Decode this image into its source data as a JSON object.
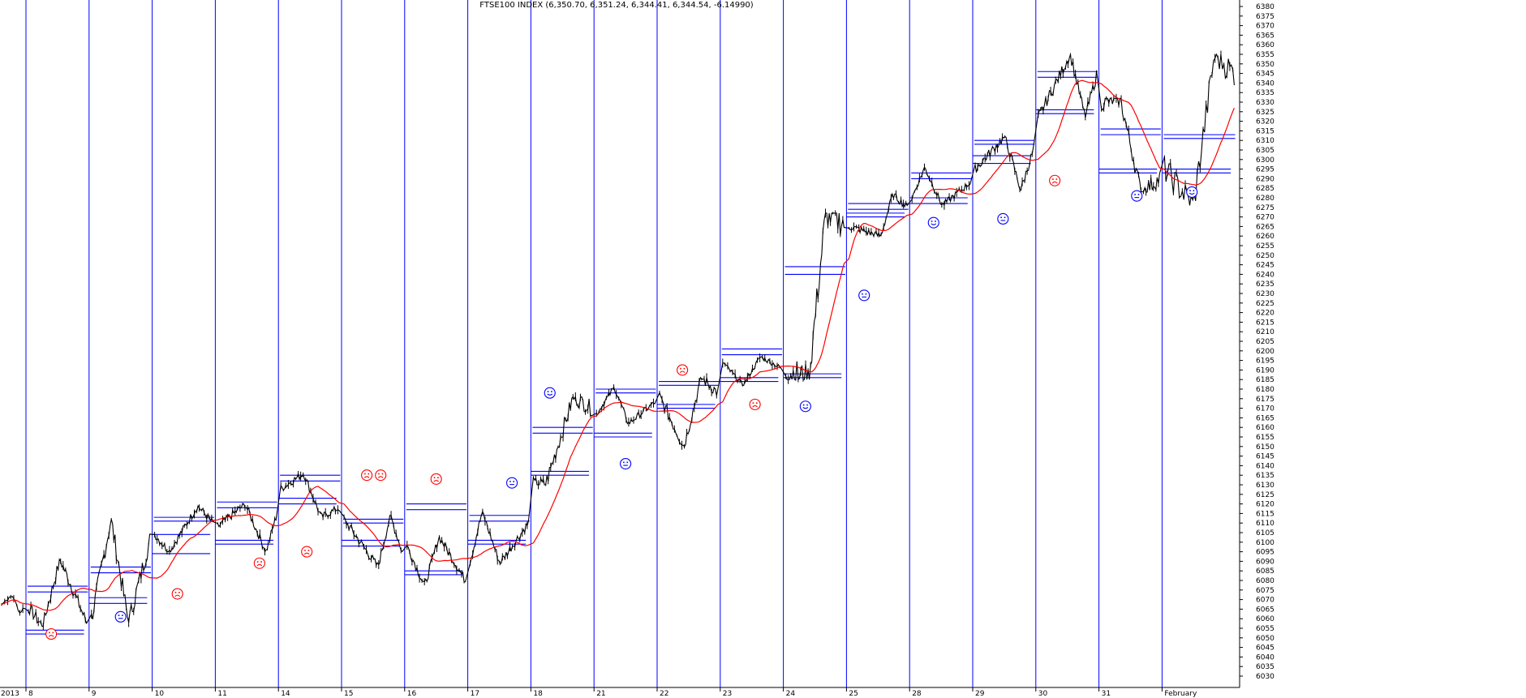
{
  "chart_data": {
    "type": "line",
    "title": "FTSE100 INDEX (6,350.70, 6,351.24, 6,344.41, 6,344.54, -6.14990)",
    "ylim": [
      6030,
      6380
    ],
    "ytick_step": 5,
    "grid": false,
    "x_labels": [
      "2013",
      "8",
      "9",
      "10",
      "11",
      "14",
      "15",
      "16",
      "17",
      "18",
      "21",
      "22",
      "23",
      "24",
      "25",
      "28",
      "29",
      "30",
      "31",
      "February"
    ],
    "sessions": [
      {
        "label": "8",
        "open": 6066,
        "close": 6058,
        "high": 6091,
        "low": 6056,
        "pivots": [
          6077,
          6074,
          6054,
          6052
        ]
      },
      {
        "label": "9",
        "open": 6060,
        "close": 6101,
        "high": 6112,
        "low": 6058,
        "pivots": [
          6087,
          6084,
          6071,
          6068
        ]
      },
      {
        "label": "10",
        "open": 6104,
        "close": 6110,
        "high": 6119,
        "low": 6095,
        "pivots": [
          6113,
          6111,
          6104,
          6094
        ]
      },
      {
        "label": "11",
        "open": 6108,
        "close": 6113,
        "high": 6120,
        "low": 6095,
        "pivots": [
          6121,
          6118,
          6101,
          6099
        ]
      },
      {
        "label": "14",
        "open": 6128,
        "close": 6118,
        "high": 6136,
        "low": 6113,
        "pivots": [
          6135,
          6132,
          6123,
          6120
        ]
      },
      {
        "label": "15",
        "open": 6112,
        "close": 6095,
        "high": 6114,
        "low": 6087,
        "pivots": [
          6112,
          6110,
          6101,
          6098
        ]
      },
      {
        "label": "16",
        "open": 6098,
        "close": 6080,
        "high": 6103,
        "low": 6077,
        "pivots": [
          6120,
          6117,
          6085,
          6083
        ]
      },
      {
        "label": "17",
        "open": 6090,
        "close": 6110,
        "high": 6116,
        "low": 6089,
        "pivots": [
          6114,
          6111,
          6101,
          6099
        ]
      },
      {
        "label": "18",
        "open": 6130,
        "close": 6170,
        "high": 6176,
        "low": 6130,
        "pivots": [
          6160,
          6157,
          6137,
          6135
        ]
      },
      {
        "label": "21",
        "open": 6167,
        "close": 6173,
        "high": 6181,
        "low": 6162,
        "pivots": [
          6180,
          6178,
          6157,
          6155
        ]
      },
      {
        "label": "22",
        "open": 6176,
        "close": 6178,
        "high": 6186,
        "low": 6150,
        "pivots": [
          6184,
          6182,
          6172,
          6170
        ]
      },
      {
        "label": "23",
        "open": 6194,
        "close": 6191,
        "high": 6197,
        "low": 6182,
        "pivots": [
          6201,
          6198,
          6186,
          6184
        ]
      },
      {
        "label": "24",
        "open": 6190,
        "close": 6267,
        "high": 6272,
        "low": 6185,
        "pivots": [
          6244,
          6240,
          6188,
          6186
        ]
      },
      {
        "label": "25",
        "open": 6265,
        "close": 6275,
        "high": 6282,
        "low": 6260,
        "pivots": [
          6277,
          6274,
          6272,
          6270
        ]
      },
      {
        "label": "28",
        "open": 6280,
        "close": 6288,
        "high": 6296,
        "low": 6276,
        "pivots": [
          6293,
          6290,
          6280,
          6277
        ]
      },
      {
        "label": "29",
        "open": 6295,
        "close": 6305,
        "high": 6312,
        "low": 6284,
        "pivots": [
          6310,
          6308,
          6302,
          6298
        ]
      },
      {
        "label": "30",
        "open": 6322,
        "close": 6344,
        "high": 6355,
        "low": 6322,
        "pivots": [
          6346,
          6343,
          6326,
          6324
        ]
      },
      {
        "label": "31",
        "open": 6330,
        "close": 6290,
        "high": 6332,
        "low": 6283,
        "pivots": [
          6316,
          6313,
          6295,
          6293
        ]
      },
      {
        "label": "February",
        "open": 6295,
        "close": 6345,
        "high": 6355,
        "low": 6276,
        "pivots": [
          6313,
          6311,
          6295,
          6293
        ]
      }
    ],
    "faces": [
      {
        "session": "8",
        "pos": 0.4,
        "value": 6052,
        "mood": "sad"
      },
      {
        "session": "9",
        "pos": 0.5,
        "value": 6061,
        "mood": "neutral"
      },
      {
        "session": "10",
        "pos": 0.4,
        "value": 6073,
        "mood": "sad"
      },
      {
        "session": "11",
        "pos": 0.7,
        "value": 6089,
        "mood": "sad"
      },
      {
        "session": "14",
        "pos": 0.45,
        "value": 6095,
        "mood": "sad"
      },
      {
        "session": "15",
        "pos": 0.4,
        "value": 6135,
        "mood": "sad"
      },
      {
        "session": "15",
        "pos": 0.62,
        "value": 6135,
        "mood": "sad"
      },
      {
        "session": "16",
        "pos": 0.5,
        "value": 6133,
        "mood": "sad"
      },
      {
        "session": "17",
        "pos": 0.7,
        "value": 6131,
        "mood": "neutral"
      },
      {
        "session": "18",
        "pos": 0.3,
        "value": 6178,
        "mood": "happy"
      },
      {
        "session": "21",
        "pos": 0.5,
        "value": 6141,
        "mood": "neutral"
      },
      {
        "session": "22",
        "pos": 0.4,
        "value": 6190,
        "mood": "sad"
      },
      {
        "session": "23",
        "pos": 0.55,
        "value": 6172,
        "mood": "sad"
      },
      {
        "session": "24",
        "pos": 0.35,
        "value": 6171,
        "mood": "happy"
      },
      {
        "session": "25",
        "pos": 0.28,
        "value": 6229,
        "mood": "neutral"
      },
      {
        "session": "28",
        "pos": 0.38,
        "value": 6267,
        "mood": "happy"
      },
      {
        "session": "29",
        "pos": 0.48,
        "value": 6269,
        "mood": "neutral"
      },
      {
        "session": "30",
        "pos": 0.3,
        "value": 6289,
        "mood": "sad"
      },
      {
        "session": "31",
        "pos": 0.6,
        "value": 6281,
        "mood": "neutral"
      },
      {
        "session": "February",
        "pos": 0.4,
        "value": 6283,
        "mood": "happy"
      }
    ],
    "colors": {
      "background": "#ffffff",
      "session_line": "#0000ff",
      "price": "#000000",
      "moving_average": "#ff0000",
      "pivot_line": "#0000ff",
      "face_sad": "#ff0000",
      "face_neutral": "#0000ff",
      "face_happy": "#0000ff"
    }
  }
}
